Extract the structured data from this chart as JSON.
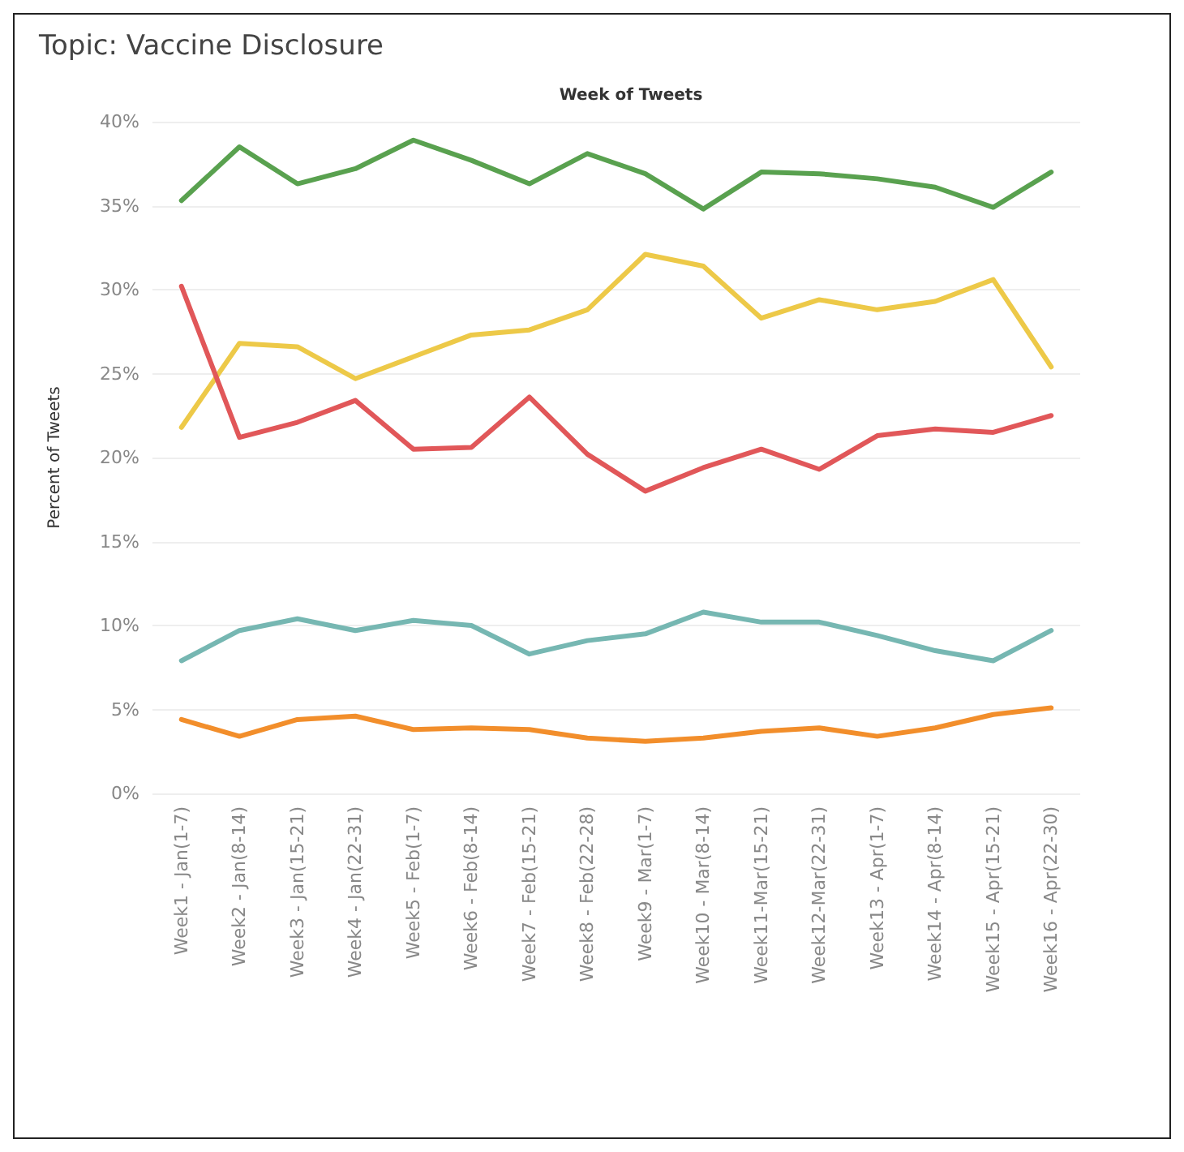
{
  "chart_data": {
    "type": "line",
    "title": "Topic: Vaccine Disclosure",
    "xlabel": "Week of Tweets",
    "ylabel": "Percent of Tweets",
    "categories": [
      "Week1 - Jan(1-7)",
      "Week2 - Jan(8-14)",
      "Week3 - Jan(15-21)",
      "Week4 - Jan(22-31)",
      "Week5 - Feb(1-7)",
      "Week6 - Feb(8-14)",
      "Week7 - Feb(15-21)",
      "Week8 - Feb(22-28)",
      "Week9 - Mar(1-7)",
      "Week10 - Mar(8-14)",
      "Week11-Mar(15-21)",
      "Week12-Mar(22-31)",
      "Week13 - Apr(1-7)",
      "Week14 - Apr(8-14)",
      "Week15 - Apr(15-21)",
      "Week16 - Apr(22-30)"
    ],
    "series": [
      {
        "color": "#59a14f",
        "values": [
          35.3,
          38.5,
          36.3,
          37.2,
          38.9,
          37.7,
          36.3,
          38.1,
          36.9,
          34.8,
          37.0,
          36.9,
          36.6,
          36.1,
          34.9,
          37.0
        ]
      },
      {
        "color": "#edc948",
        "values": [
          21.8,
          26.8,
          26.6,
          24.7,
          26.0,
          27.3,
          27.6,
          28.8,
          32.1,
          31.4,
          28.3,
          29.4,
          28.8,
          29.3,
          30.6,
          25.4
        ]
      },
      {
        "color": "#e15759",
        "values": [
          30.2,
          21.2,
          22.1,
          23.4,
          20.5,
          20.6,
          23.6,
          20.2,
          18.0,
          19.4,
          20.5,
          19.3,
          21.3,
          21.7,
          21.5,
          22.5
        ]
      },
      {
        "color": "#76b7b2",
        "values": [
          7.9,
          9.7,
          10.4,
          9.7,
          10.3,
          10.0,
          8.3,
          9.1,
          9.5,
          10.8,
          10.2,
          10.2,
          9.4,
          8.5,
          7.9,
          9.7
        ]
      },
      {
        "color": "#f28e2b",
        "values": [
          4.4,
          3.4,
          4.4,
          4.6,
          3.8,
          3.9,
          3.8,
          3.3,
          3.1,
          3.3,
          3.7,
          3.9,
          3.4,
          3.9,
          4.7,
          5.1
        ]
      }
    ],
    "ylim": [
      0,
      40
    ],
    "yticks": [
      {
        "value": 0,
        "label": "0%"
      },
      {
        "value": 5,
        "label": "5%"
      },
      {
        "value": 10,
        "label": "10%"
      },
      {
        "value": 15,
        "label": "15%"
      },
      {
        "value": 20,
        "label": "20%"
      },
      {
        "value": 25,
        "label": "25%"
      },
      {
        "value": 30,
        "label": "30%"
      },
      {
        "value": 35,
        "label": "35%"
      },
      {
        "value": 40,
        "label": "40%"
      }
    ],
    "grid": "y",
    "marker": "none",
    "line_style": "solid"
  }
}
